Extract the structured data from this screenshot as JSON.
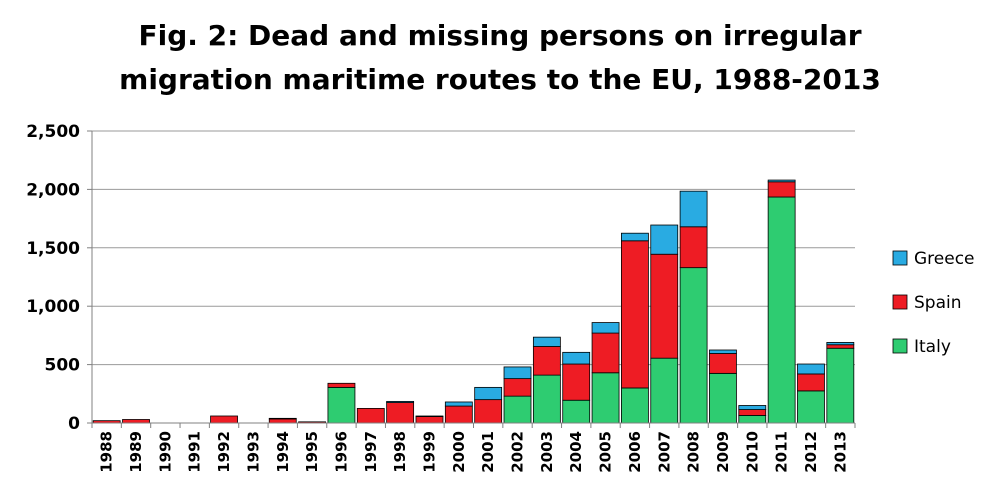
{
  "chart_data": {
    "type": "bar",
    "stacked": true,
    "title_line1": "Fig. 2: Dead and missing persons on irregular",
    "title_line2": "migration maritime routes to the EU, 1988-2013",
    "xlabel": "",
    "ylabel": "",
    "ylim": [
      0,
      2500
    ],
    "yticks": [
      "0",
      "500",
      "1,000",
      "1,500",
      "2,000",
      "2,500"
    ],
    "ytick_values": [
      0,
      500,
      1000,
      1500,
      2000,
      2500
    ],
    "grid": true,
    "legend_position": "right",
    "categories": [
      "1988",
      "1989",
      "1990",
      "1991",
      "1992",
      "1993",
      "1994",
      "1995",
      "1996",
      "1997",
      "1998",
      "1999",
      "2000",
      "2001",
      "2002",
      "2003",
      "2004",
      "2005",
      "2006",
      "2007",
      "2008",
      "2009",
      "2010",
      "2011",
      "2012",
      "2013"
    ],
    "series": [
      {
        "name": "Italy",
        "color": "#2ecc71",
        "values": [
          0,
          0,
          0,
          0,
          0,
          0,
          0,
          0,
          305,
          0,
          0,
          0,
          0,
          0,
          230,
          410,
          195,
          430,
          300,
          555,
          1330,
          425,
          65,
          1935,
          275,
          640
        ]
      },
      {
        "name": "Spain",
        "color": "#ee1c24",
        "values": [
          20,
          30,
          0,
          0,
          60,
          0,
          35,
          10,
          35,
          125,
          175,
          55,
          145,
          200,
          150,
          245,
          310,
          340,
          1260,
          890,
          350,
          170,
          50,
          130,
          145,
          30
        ]
      },
      {
        "name": "Greece",
        "color": "#29abe2",
        "values": [
          0,
          0,
          0,
          0,
          0,
          0,
          5,
          0,
          0,
          0,
          10,
          5,
          35,
          105,
          100,
          80,
          100,
          90,
          65,
          250,
          305,
          30,
          35,
          15,
          85,
          20
        ]
      }
    ],
    "legend_order": [
      "Greece",
      "Spain",
      "Italy"
    ]
  }
}
